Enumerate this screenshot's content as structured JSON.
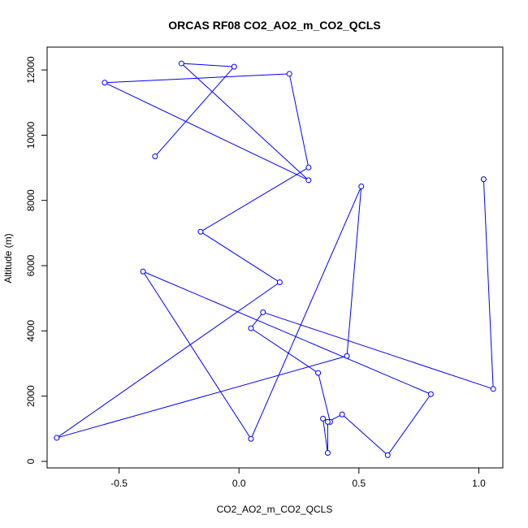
{
  "chart_data": {
    "type": "line",
    "title": "ORCAS RF08 CO2_AO2_m_CO2_QCLS",
    "xlabel": "CO2_AO2_m_CO2_QCLS",
    "ylabel": "Altitude (m)",
    "xlim": [
      -0.8,
      1.1
    ],
    "ylim": [
      -200,
      12700
    ],
    "x_ticks": [
      -0.5,
      0.0,
      0.5,
      1.0
    ],
    "x_tick_labels": [
      "-0.5",
      "0.0",
      "0.5",
      "1.0"
    ],
    "y_ticks": [
      0,
      2000,
      4000,
      6000,
      8000,
      10000,
      12000
    ],
    "y_tick_labels": [
      "0",
      "2000",
      "4000",
      "6000",
      "8000",
      "10000",
      "12000"
    ],
    "grid": false,
    "markers": "open-circle",
    "color": "#0000ff",
    "series": [
      {
        "x": [
          1.02,
          1.06,
          0.1,
          0.05,
          0.33,
          0.38,
          0.35,
          0.37,
          0.37,
          0.43,
          0.62,
          0.8,
          -0.4,
          0.05,
          0.51,
          0.45,
          -0.76,
          0.17,
          -0.16,
          0.29,
          0.21,
          -0.56,
          0.29,
          -0.24,
          -0.02,
          -0.35
        ],
        "y": [
          8650,
          2220,
          4570,
          4080,
          2710,
          1210,
          1310,
          260,
          1210,
          1440,
          190,
          2060,
          5820,
          690,
          8430,
          3230,
          720,
          5490,
          7040,
          9010,
          11880,
          11610,
          8620,
          12200,
          12100,
          9350
        ]
      }
    ]
  }
}
